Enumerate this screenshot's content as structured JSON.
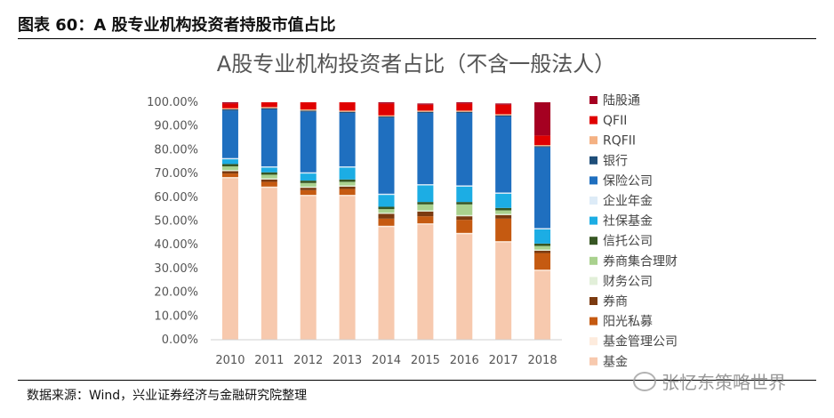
{
  "header": {
    "figure_title": "图表 60：A 股专业机构投资者持股市值占比"
  },
  "footer": {
    "source": "数据来源：Wind，兴业证券经济与金融研究院整理"
  },
  "watermark": {
    "text": "张忆东策略世界"
  },
  "chart_data": {
    "type": "bar",
    "stacked": true,
    "title": "A股专业机构投资者占比（不含一般法人）",
    "xlabel": "",
    "ylabel": "",
    "ylim": [
      0,
      100
    ],
    "y_ticks": [
      "0.00%",
      "10.00%",
      "20.00%",
      "30.00%",
      "40.00%",
      "50.00%",
      "60.00%",
      "70.00%",
      "80.00%",
      "90.00%",
      "100.00%"
    ],
    "categories": [
      "2010",
      "2011",
      "2012",
      "2013",
      "2014",
      "2015",
      "2016",
      "2017",
      "2018"
    ],
    "legend_position": "right",
    "series": [
      {
        "name": "基金",
        "color": "#F7C9AE",
        "values": [
          68,
          64,
          60.5,
          60.5,
          47.5,
          48.5,
          44.5,
          41,
          29
        ]
      },
      {
        "name": "基金管理公司",
        "color": "#FDEBDD",
        "values": [
          0.5,
          0.5,
          0.5,
          0.5,
          0.5,
          0.5,
          0.5,
          0.5,
          0.5
        ]
      },
      {
        "name": "阳光私募",
        "color": "#C55A11",
        "values": [
          1.5,
          2,
          2,
          2.5,
          3,
          3,
          5.5,
          9.5,
          7
        ]
      },
      {
        "name": "券商",
        "color": "#7B3A10",
        "values": [
          1,
          1,
          1,
          1,
          2,
          2,
          1.5,
          1.5,
          1
        ]
      },
      {
        "name": "财务公司",
        "color": "#E2EFD9",
        "values": [
          0.5,
          0.5,
          0.5,
          0.5,
          0.5,
          0.5,
          0.5,
          0.5,
          0.5
        ]
      },
      {
        "name": "券商集合理财",
        "color": "#A9D18E",
        "values": [
          1.5,
          1.5,
          1.5,
          1.5,
          1.5,
          2.5,
          4.5,
          1.5,
          1.5
        ]
      },
      {
        "name": "信托公司",
        "color": "#375623",
        "values": [
          1,
          1,
          1,
          1,
          1,
          1,
          1,
          1,
          1
        ]
      },
      {
        "name": "社保基金",
        "color": "#1CADE4",
        "values": [
          2,
          2,
          3,
          5,
          5,
          7,
          6.5,
          6,
          6
        ]
      },
      {
        "name": "企业年金",
        "color": "#DDEBF7",
        "values": [
          0.5,
          0.5,
          0.5,
          0.5,
          0.5,
          0.5,
          0.5,
          0.5,
          0.5
        ]
      },
      {
        "name": "保险公司",
        "color": "#1F6FBF",
        "values": [
          20,
          24,
          25.5,
          22.5,
          32,
          30,
          30.5,
          32,
          34
        ]
      },
      {
        "name": "银行",
        "color": "#1F4E79",
        "values": [
          0.5,
          0.5,
          0.5,
          0.5,
          0.5,
          0.5,
          0.5,
          0.5,
          0.5
        ]
      },
      {
        "name": "RQFII",
        "color": "#F4B183",
        "values": [
          0.5,
          0.5,
          0.5,
          0.5,
          0.5,
          0.5,
          0.5,
          0.5,
          0.5
        ]
      },
      {
        "name": "QFII",
        "color": "#E00000",
        "values": [
          2,
          2.5,
          3,
          3.5,
          5,
          2.5,
          3,
          4,
          4
        ]
      },
      {
        "name": "陆股通",
        "color": "#A50021",
        "values": [
          0.5,
          0.5,
          0.5,
          0.5,
          0.5,
          0.5,
          0.5,
          0.5,
          14
        ]
      }
    ]
  }
}
